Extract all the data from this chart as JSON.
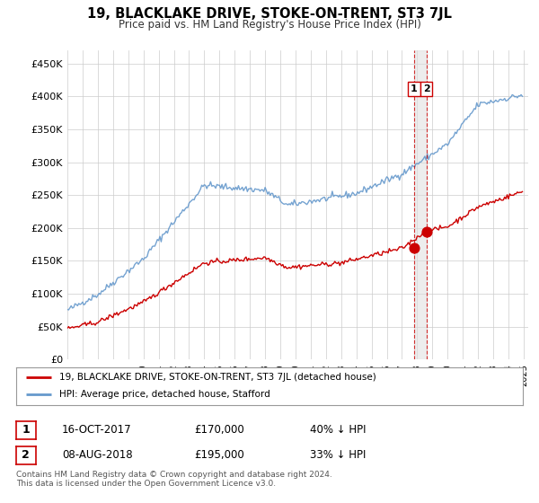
{
  "title": "19, BLACKLAKE DRIVE, STOKE-ON-TRENT, ST3 7JL",
  "subtitle": "Price paid vs. HM Land Registry's House Price Index (HPI)",
  "ylabel_ticks": [
    "£0",
    "£50K",
    "£100K",
    "£150K",
    "£200K",
    "£250K",
    "£300K",
    "£350K",
    "£400K",
    "£450K"
  ],
  "ytick_values": [
    0,
    50000,
    100000,
    150000,
    200000,
    250000,
    300000,
    350000,
    400000,
    450000
  ],
  "ylim": [
    0,
    470000
  ],
  "year_start": 1995,
  "year_end": 2025,
  "hpi_color": "#6699cc",
  "price_color": "#cc0000",
  "point1_year": 2017.79,
  "point1_price": 170000,
  "point1_date": "16-OCT-2017",
  "point2_year": 2018.6,
  "point2_price": 195000,
  "point2_date": "08-AUG-2018",
  "legend1_text": "19, BLACKLAKE DRIVE, STOKE-ON-TRENT, ST3 7JL (detached house)",
  "legend2_text": "HPI: Average price, detached house, Stafford",
  "footnote": "Contains HM Land Registry data © Crown copyright and database right 2024.\nThis data is licensed under the Open Government Licence v3.0.",
  "bg_color": "#ffffff",
  "grid_color": "#cccccc"
}
